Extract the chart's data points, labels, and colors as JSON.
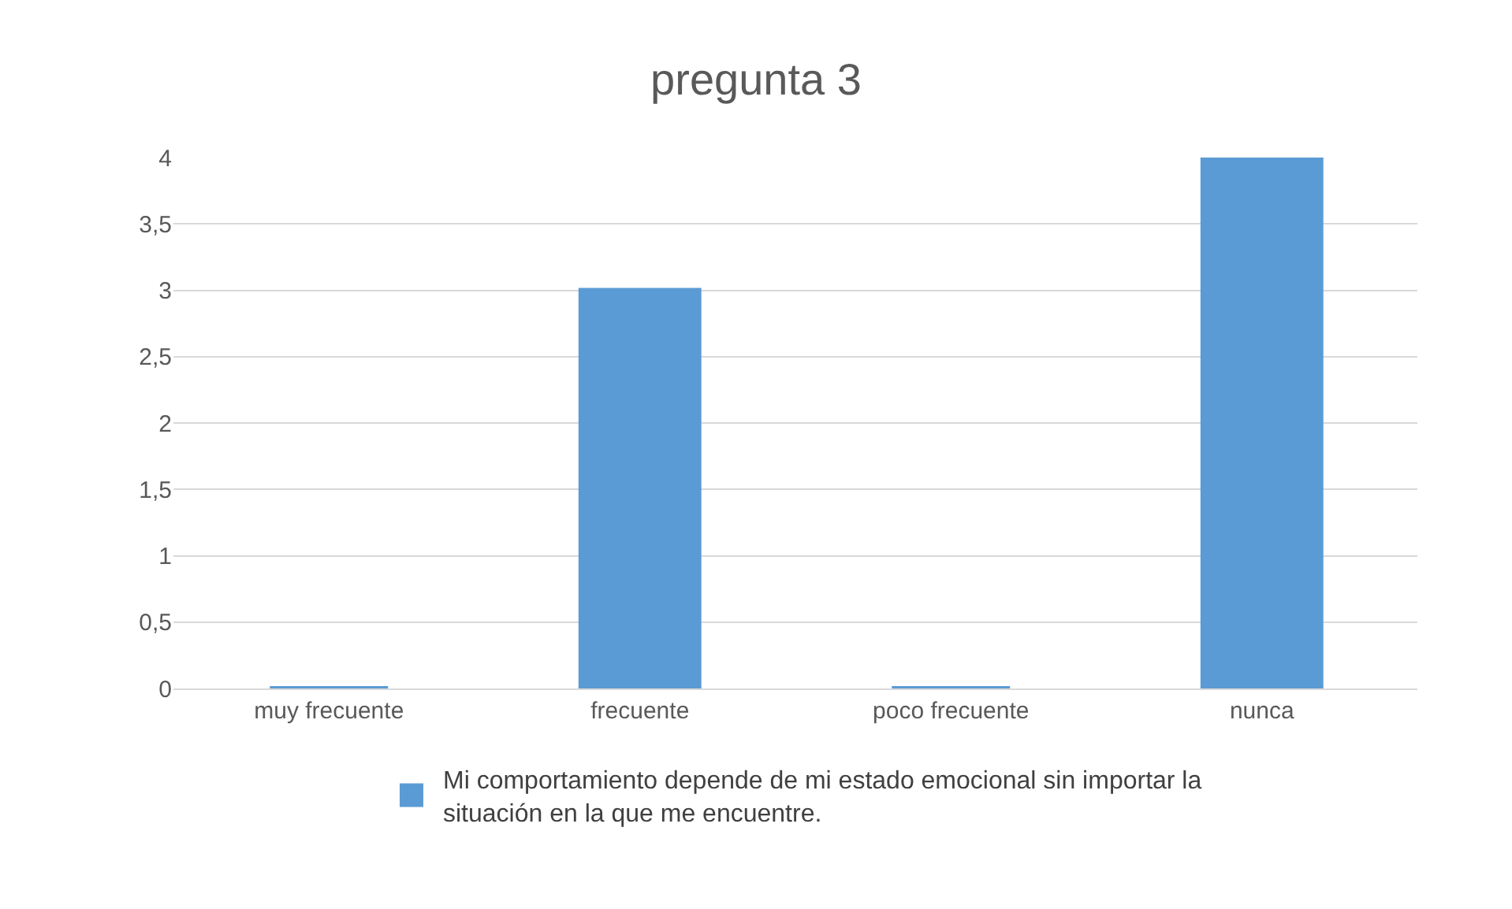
{
  "chart_data": {
    "type": "bar",
    "title": "pregunta 3",
    "categories": [
      "muy frecuente",
      "frecuente",
      "poco frecuente",
      "nunca"
    ],
    "series": [
      {
        "name": "Mi comportamiento depende de mi estado emocional sin importar la situación en la que me encuentre.",
        "color": "#5b9bd5",
        "values": [
          0,
          3,
          0,
          4
        ]
      }
    ],
    "ylim": [
      0,
      4
    ],
    "yticks": [
      0,
      {
        "value": 0.5,
        "label": "0,5"
      },
      1,
      {
        "value": 1.5,
        "label": "1,5"
      },
      2,
      {
        "value": 2.5,
        "label": "2,5"
      },
      3,
      {
        "value": 3.5,
        "label": "3,5"
      },
      4
    ],
    "grid": "y",
    "legend": "bottom"
  }
}
